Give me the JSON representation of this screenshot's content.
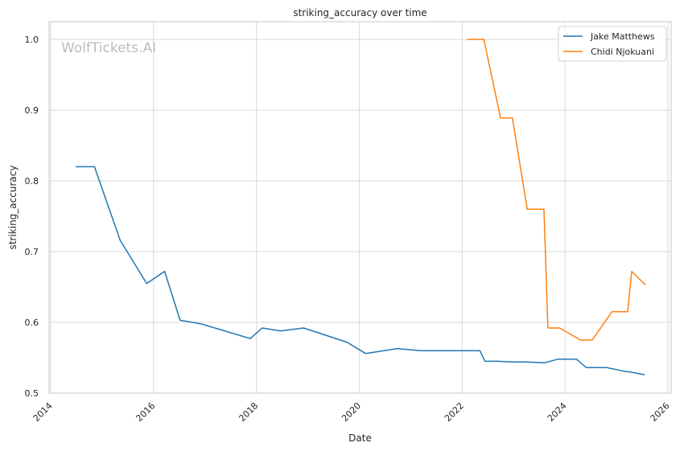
{
  "chart_data": {
    "type": "line",
    "title": "striking_accuracy over time",
    "xlabel": "Date",
    "ylabel": "striking_accuracy",
    "watermark": "WolfTickets.AI",
    "x_ticks": [
      "2014",
      "2016",
      "2018",
      "2020",
      "2022",
      "2024",
      "2026"
    ],
    "y_ticks": [
      "0.5",
      "0.6",
      "0.7",
      "0.8",
      "0.9",
      "1.0"
    ],
    "xlim": [
      "2014-01-01",
      "2026-01-01"
    ],
    "ylim": [
      0.5,
      1.0
    ],
    "grid": true,
    "legend_position": "top-right",
    "series": [
      {
        "name": "Jake Matthews",
        "color": "#1f77b4",
        "points": [
          [
            "2014-06-28",
            0.82
          ],
          [
            "2014-11-08",
            0.82
          ],
          [
            "2015-05-09",
            0.716
          ],
          [
            "2015-11-14",
            0.655
          ],
          [
            "2016-03-20",
            0.672
          ],
          [
            "2016-07-08",
            0.603
          ],
          [
            "2016-12-03",
            0.598
          ],
          [
            "2017-11-19",
            0.577
          ],
          [
            "2018-02-11",
            0.592
          ],
          [
            "2018-06-23",
            0.588
          ],
          [
            "2018-12-02",
            0.592
          ],
          [
            "2019-10-05",
            0.572
          ],
          [
            "2020-02-15",
            0.556
          ],
          [
            "2020-09-27",
            0.563
          ],
          [
            "2021-03-13",
            0.56
          ],
          [
            "2022-05-07",
            0.56
          ],
          [
            "2022-06-12",
            0.545
          ],
          [
            "2022-09-10",
            0.545
          ],
          [
            "2022-12-17",
            0.544
          ],
          [
            "2023-03-25",
            0.544
          ],
          [
            "2023-08-12",
            0.543
          ],
          [
            "2023-11-11",
            0.548
          ],
          [
            "2024-03-23",
            0.548
          ],
          [
            "2024-06-01",
            0.536
          ],
          [
            "2024-10-26",
            0.536
          ],
          [
            "2025-02-22",
            0.531
          ],
          [
            "2025-04-05",
            0.53
          ],
          [
            "2025-07-19",
            0.526
          ]
        ]
      },
      {
        "name": "Chidi Njokuani",
        "color": "#ff7f0e",
        "points": [
          [
            "2022-02-05",
            1.0
          ],
          [
            "2022-06-04",
            1.0
          ],
          [
            "2022-10-01",
            0.889
          ],
          [
            "2022-12-24",
            0.889
          ],
          [
            "2023-04-08",
            0.76
          ],
          [
            "2023-08-05",
            0.76
          ],
          [
            "2023-09-02",
            0.592
          ],
          [
            "2023-11-25",
            0.592
          ],
          [
            "2024-04-20",
            0.575
          ],
          [
            "2024-07-13",
            0.575
          ],
          [
            "2024-11-30",
            0.615
          ],
          [
            "2025-03-22",
            0.615
          ],
          [
            "2025-04-19",
            0.672
          ],
          [
            "2025-07-26",
            0.653
          ]
        ]
      }
    ]
  }
}
